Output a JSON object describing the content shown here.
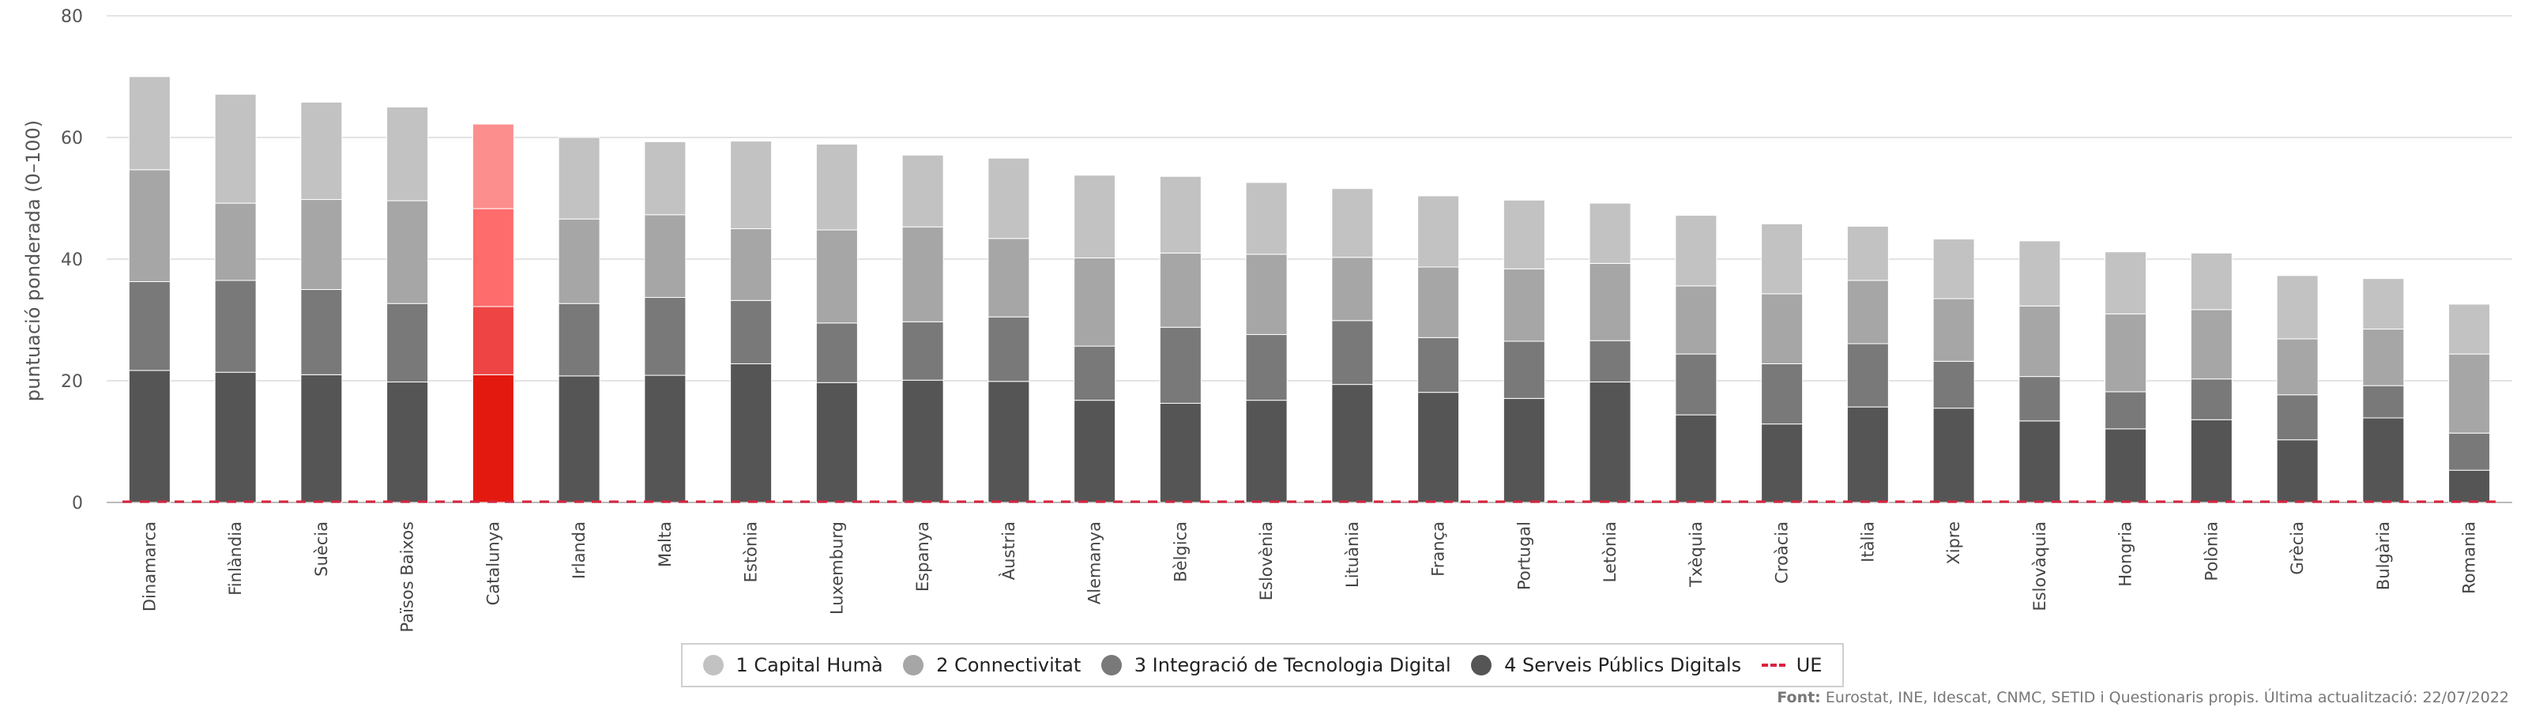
{
  "chart_data": {
    "type": "bar",
    "stacked": true,
    "ylabel": "puntuació ponderada (0–100)",
    "ylim": [
      0,
      80
    ],
    "yticks": [
      0,
      20,
      40,
      60,
      80
    ],
    "grid": true,
    "legend_position": "bottom",
    "highlight_category": "Catalunya",
    "categories": [
      "Dinamarca",
      "Finlàndia",
      "Suècia",
      "Països Baixos",
      "Catalunya",
      "Irlanda",
      "Malta",
      "Estònia",
      "Luxemburg",
      "Espanya",
      "Àustria",
      "Alemanya",
      "Bèlgica",
      "Eslovènia",
      "Lituània",
      "França",
      "Portugal",
      "Letònia",
      "Txèquia",
      "Croàcia",
      "Itàlia",
      "Xipre",
      "Eslovàquia",
      "Hongria",
      "Polònia",
      "Grècia",
      "Bulgària",
      "Romania"
    ],
    "series": [
      {
        "name": "4 Serveis Públics Digitals",
        "color": "#555555",
        "highlight_color": "#e3190f",
        "values": [
          21.7,
          21.4,
          21.0,
          19.8,
          21.0,
          20.8,
          20.9,
          22.8,
          19.7,
          20.1,
          19.9,
          16.8,
          16.3,
          16.8,
          19.4,
          18.1,
          17.1,
          19.8,
          14.4,
          12.9,
          15.7,
          15.5,
          13.4,
          12.1,
          13.6,
          10.3,
          13.9,
          5.3
        ]
      },
      {
        "name": "3 Integració de Tecnologia Digital",
        "color": "#797979",
        "highlight_color": "#ee4444",
        "values": [
          14.6,
          15.1,
          14.0,
          12.9,
          11.2,
          11.9,
          12.8,
          10.4,
          9.8,
          9.6,
          10.6,
          8.9,
          12.5,
          10.8,
          10.5,
          9.0,
          9.4,
          6.8,
          10.0,
          9.9,
          10.4,
          7.7,
          7.3,
          6.1,
          6.7,
          7.4,
          5.3,
          6.1
        ]
      },
      {
        "name": "2 Connectivitat",
        "color": "#a6a6a6",
        "highlight_color": "#fe6c6c",
        "values": [
          18.4,
          12.7,
          14.8,
          16.9,
          16.1,
          13.9,
          13.6,
          11.8,
          15.3,
          15.6,
          12.9,
          14.5,
          12.2,
          13.2,
          10.4,
          11.6,
          11.9,
          12.7,
          11.2,
          11.5,
          10.4,
          10.3,
          11.6,
          12.8,
          11.4,
          9.2,
          9.3,
          13.0
        ]
      },
      {
        "name": "1 Capital Humà",
        "color": "#c2c2c2",
        "highlight_color": "#fd8e8e",
        "values": [
          15.3,
          17.9,
          16.0,
          15.4,
          13.9,
          13.4,
          12.0,
          14.4,
          14.1,
          11.8,
          13.2,
          13.6,
          12.6,
          11.8,
          11.3,
          11.7,
          11.3,
          9.9,
          11.6,
          11.5,
          8.9,
          9.8,
          10.7,
          10.2,
          9.3,
          10.4,
          8.3,
          8.2
        ]
      }
    ],
    "reference_line": {
      "name": "UE",
      "value": 0,
      "color": "#d9233f",
      "style": "dashed"
    }
  },
  "legend": [
    {
      "label": "1 Capital Humà",
      "color": "#c2c2c2",
      "type": "dot"
    },
    {
      "label": "2 Connectivitat",
      "color": "#a6a6a6",
      "type": "dot"
    },
    {
      "label": "3 Integració de Tecnologia Digital",
      "color": "#797979",
      "type": "dot"
    },
    {
      "label": "4 Serveis Públics Digitals",
      "color": "#555555",
      "type": "dot"
    },
    {
      "label": "UE",
      "color": "#d9233f",
      "type": "dash"
    }
  ],
  "source": {
    "prefix": "Font:",
    "text": "Eurostat, INE, Idescat, CNMC, SETID i Questionaris propis. Última actualització:",
    "date": "22/07/2022"
  }
}
